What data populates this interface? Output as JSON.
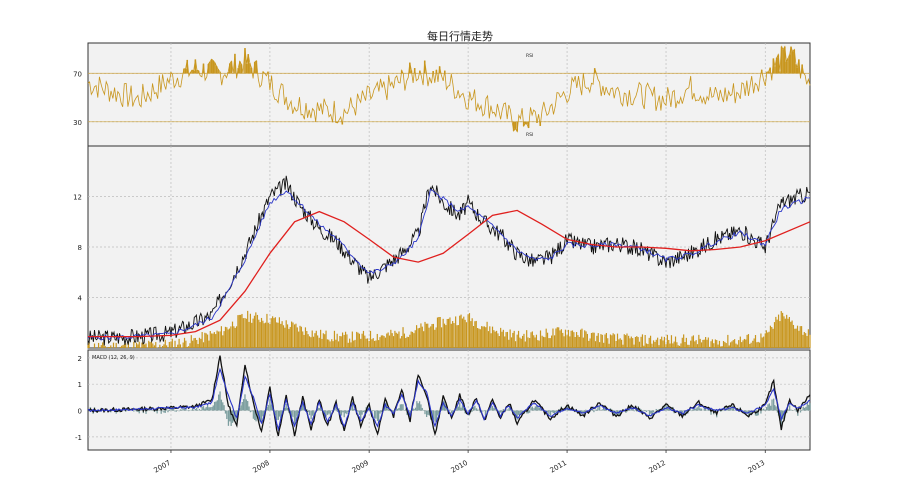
{
  "title": "每日行情走势",
  "chart_data": [
    {
      "panel": "rsi",
      "type": "line",
      "yticks": [
        30,
        70
      ],
      "ylim": [
        10,
        95
      ],
      "levels": [
        30,
        70
      ],
      "legend_top": "RSI",
      "legend_bottom": "RSI",
      "grid": true,
      "color": "#c8961e",
      "fill_above": 70,
      "fill_below": 30,
      "series": [
        {
          "x": [
            "2006-03-01",
            "2006-06-01",
            "2006-09-01",
            "2007-01-01",
            "2007-04-01",
            "2007-07-01",
            "2007-10-01",
            "2008-01-01",
            "2008-04-01",
            "2008-07-01",
            "2008-10-01",
            "2009-01-01",
            "2009-04-01",
            "2009-07-01",
            "2009-10-01",
            "2010-01-01",
            "2010-04-01",
            "2010-07-01",
            "2010-10-01",
            "2011-01-01",
            "2011-04-01",
            "2011-07-01",
            "2011-10-01",
            "2012-01-01",
            "2012-04-01",
            "2012-07-01",
            "2012-10-01",
            "2013-01-01",
            "2013-04-01",
            "2013-06-15"
          ],
          "values": [
            62,
            55,
            48,
            65,
            74,
            70,
            80,
            62,
            45,
            40,
            38,
            50,
            60,
            72,
            66,
            50,
            42,
            30,
            35,
            55,
            65,
            55,
            52,
            48,
            58,
            50,
            55,
            70,
            88,
            60
          ]
        }
      ]
    },
    {
      "panel": "price",
      "type": "line",
      "yticks": [
        4,
        8,
        12
      ],
      "ylim": [
        0,
        16
      ],
      "grid": true,
      "series": [
        {
          "color": "#111111",
          "x": [
            "2006-03-01",
            "2006-09-01",
            "2007-01-01",
            "2007-04-01",
            "2007-06-01",
            "2007-08-01",
            "2007-10-01",
            "2008-01-01",
            "2008-03-01",
            "2008-05-01",
            "2008-07-01",
            "2008-09-01",
            "2008-11-01",
            "2009-01-01",
            "2009-03-01",
            "2009-05-01",
            "2009-07-01",
            "2009-08-15",
            "2009-10-01",
            "2009-12-01",
            "2010-01-01",
            "2010-03-01",
            "2010-05-01",
            "2010-07-01",
            "2010-09-01",
            "2010-11-01",
            "2011-01-01",
            "2011-04-01",
            "2011-07-01",
            "2011-10-01",
            "2012-01-01",
            "2012-04-01",
            "2012-07-01",
            "2012-10-01",
            "2013-01-01",
            "2013-03-01",
            "2013-06-15"
          ],
          "values": [
            0.8,
            0.9,
            1.2,
            2.0,
            2.6,
            5.0,
            7.5,
            12.0,
            13.0,
            11.0,
            9.5,
            8.5,
            7.0,
            5.5,
            6.5,
            7.5,
            9.0,
            13.0,
            11.5,
            10.5,
            11.5,
            10.0,
            9.0,
            7.5,
            6.8,
            7.2,
            8.5,
            8.0,
            8.3,
            7.8,
            6.8,
            7.5,
            8.6,
            9.3,
            8.0,
            11.5,
            12.3
          ]
        },
        {
          "color": "#2a35c8",
          "x": [
            "2006-03-01",
            "2006-09-01",
            "2007-01-01",
            "2007-04-01",
            "2007-06-01",
            "2007-08-01",
            "2007-10-01",
            "2008-01-01",
            "2008-03-01",
            "2008-05-01",
            "2008-07-01",
            "2008-09-01",
            "2008-11-01",
            "2009-01-01",
            "2009-03-01",
            "2009-05-01",
            "2009-07-01",
            "2009-08-15",
            "2009-10-01",
            "2009-12-01",
            "2010-01-01",
            "2010-03-01",
            "2010-05-01",
            "2010-07-01",
            "2010-09-01",
            "2010-11-01",
            "2011-01-01",
            "2011-04-01",
            "2011-07-01",
            "2011-10-01",
            "2012-01-01",
            "2012-04-01",
            "2012-07-01",
            "2012-10-01",
            "2013-01-01",
            "2013-03-01",
            "2013-06-15"
          ],
          "values": [
            0.8,
            0.9,
            1.1,
            1.8,
            2.4,
            4.5,
            7.0,
            11.5,
            12.5,
            11.2,
            9.8,
            8.7,
            7.3,
            5.9,
            6.3,
            7.2,
            8.6,
            12.5,
            11.8,
            10.8,
            11.2,
            10.2,
            9.1,
            7.7,
            7.0,
            7.1,
            8.2,
            8.1,
            8.2,
            7.9,
            7.0,
            7.4,
            8.4,
            9.1,
            8.2,
            11.0,
            11.9
          ]
        },
        {
          "color": "#e0201e",
          "x": [
            "2006-03-01",
            "2006-09-01",
            "2007-01-01",
            "2007-04-01",
            "2007-07-01",
            "2007-10-01",
            "2008-01-01",
            "2008-04-01",
            "2008-07-01",
            "2008-10-01",
            "2009-01-01",
            "2009-04-01",
            "2009-07-01",
            "2009-10-01",
            "2010-01-01",
            "2010-04-01",
            "2010-07-01",
            "2010-10-01",
            "2011-01-01",
            "2011-04-01",
            "2011-07-01",
            "2011-10-01",
            "2012-01-01",
            "2012-04-01",
            "2012-07-01",
            "2012-10-01",
            "2013-01-01",
            "2013-06-15"
          ],
          "values": [
            0.9,
            0.9,
            1.0,
            1.3,
            2.2,
            4.5,
            7.5,
            10.0,
            10.8,
            10.0,
            8.6,
            7.2,
            6.8,
            7.5,
            9.0,
            10.5,
            10.9,
            9.8,
            8.6,
            8.2,
            8.0,
            8.0,
            7.9,
            7.7,
            7.8,
            8.0,
            8.5,
            10.0
          ]
        }
      ],
      "volume_color": "#c8961e",
      "volume": {
        "x": [
          "2006-03-01",
          "2006-09-01",
          "2007-01-01",
          "2007-04-01",
          "2007-07-01",
          "2007-10-01",
          "2008-01-01",
          "2008-04-01",
          "2008-07-01",
          "2008-10-01",
          "2009-01-01",
          "2009-04-01",
          "2009-07-01",
          "2009-10-01",
          "2010-01-01",
          "2010-04-01",
          "2010-07-01",
          "2010-10-01",
          "2011-01-01",
          "2011-04-01",
          "2011-07-01",
          "2011-10-01",
          "2012-01-01",
          "2012-04-01",
          "2012-07-01",
          "2012-10-01",
          "2013-01-01",
          "2013-03-01",
          "2013-06-15"
        ],
        "values": [
          0.1,
          0.15,
          0.3,
          0.6,
          1.2,
          2.4,
          2.2,
          1.6,
          1.0,
          0.8,
          0.9,
          1.0,
          1.4,
          2.0,
          2.3,
          1.4,
          0.9,
          1.0,
          1.3,
          0.9,
          0.7,
          0.6,
          0.6,
          0.6,
          0.5,
          0.6,
          0.8,
          2.5,
          1.0
        ]
      }
    },
    {
      "panel": "macd",
      "type": "line",
      "legend": "MACD (12, 26, 9)",
      "yticks": [
        -1,
        0,
        1,
        2
      ],
      "ylim": [
        -1.5,
        2.3
      ],
      "grid": true,
      "series": [
        {
          "color": "#111111",
          "x": [
            "2006-03-01",
            "2006-09-01",
            "2007-01-01",
            "2007-04-01",
            "2007-06-01",
            "2007-07-01",
            "2007-08-01",
            "2007-09-01",
            "2007-10-01",
            "2007-11-01",
            "2007-12-01",
            "2008-01-01",
            "2008-02-01",
            "2008-03-01",
            "2008-04-01",
            "2008-05-01",
            "2008-06-01",
            "2008-07-01",
            "2008-08-01",
            "2008-09-01",
            "2008-10-01",
            "2008-11-01",
            "2008-12-01",
            "2009-01-01",
            "2009-02-01",
            "2009-03-01",
            "2009-04-01",
            "2009-05-01",
            "2009-06-01",
            "2009-07-01",
            "2009-08-01",
            "2009-09-01",
            "2009-10-01",
            "2009-11-01",
            "2009-12-01",
            "2010-01-01",
            "2010-02-01",
            "2010-03-01",
            "2010-04-01",
            "2010-05-01",
            "2010-06-01",
            "2010-07-01",
            "2010-09-01",
            "2010-11-01",
            "2011-01-01",
            "2011-03-01",
            "2011-05-01",
            "2011-07-01",
            "2011-09-01",
            "2011-11-01",
            "2012-01-01",
            "2012-03-01",
            "2012-05-01",
            "2012-07-01",
            "2012-09-01",
            "2012-11-01",
            "2013-01-01",
            "2013-02-01",
            "2013-03-01",
            "2013-04-01",
            "2013-05-01",
            "2013-06-15"
          ],
          "values": [
            0.0,
            0.05,
            0.1,
            0.15,
            0.4,
            2.1,
            0.2,
            -0.6,
            1.8,
            0.3,
            -0.8,
            0.9,
            -1.0,
            0.6,
            -0.9,
            0.5,
            -0.7,
            0.4,
            -0.6,
            0.3,
            -0.8,
            0.5,
            -0.6,
            0.2,
            -0.9,
            0.4,
            -0.2,
            0.8,
            -0.4,
            1.4,
            0.6,
            -0.9,
            0.5,
            -0.3,
            0.6,
            -0.2,
            0.5,
            -0.4,
            0.4,
            -0.3,
            0.3,
            -0.5,
            0.4,
            -0.3,
            0.2,
            -0.2,
            0.3,
            -0.2,
            0.2,
            -0.3,
            0.2,
            -0.2,
            0.3,
            -0.1,
            0.2,
            -0.2,
            0.2,
            1.1,
            -0.7,
            0.4,
            0.0,
            0.6
          ]
        },
        {
          "color": "#2a35c8",
          "x": [
            "2006-03-01",
            "2006-09-01",
            "2007-01-01",
            "2007-04-01",
            "2007-06-01",
            "2007-07-01",
            "2007-08-01",
            "2007-09-01",
            "2007-10-01",
            "2007-11-01",
            "2007-12-01",
            "2008-01-01",
            "2008-02-01",
            "2008-03-01",
            "2008-04-01",
            "2008-05-01",
            "2008-06-01",
            "2008-07-01",
            "2008-08-01",
            "2008-09-01",
            "2008-10-01",
            "2008-11-01",
            "2008-12-01",
            "2009-01-01",
            "2009-02-01",
            "2009-03-01",
            "2009-04-01",
            "2009-05-01",
            "2009-06-01",
            "2009-07-01",
            "2009-08-01",
            "2009-09-01",
            "2009-10-01",
            "2009-11-01",
            "2009-12-01",
            "2010-01-01",
            "2010-02-01",
            "2010-03-01",
            "2010-04-01",
            "2010-05-01",
            "2010-06-01",
            "2010-07-01",
            "2010-09-01",
            "2010-11-01",
            "2011-01-01",
            "2011-03-01",
            "2011-05-01",
            "2011-07-01",
            "2011-09-01",
            "2011-11-01",
            "2012-01-01",
            "2012-03-01",
            "2012-05-01",
            "2012-07-01",
            "2012-09-01",
            "2012-11-01",
            "2013-01-01",
            "2013-02-01",
            "2013-03-01",
            "2013-04-01",
            "2013-05-01",
            "2013-06-15"
          ],
          "values": [
            0.0,
            0.05,
            0.1,
            0.12,
            0.3,
            1.6,
            0.6,
            -0.3,
            1.3,
            0.5,
            -0.5,
            0.6,
            -0.7,
            0.4,
            -0.6,
            0.3,
            -0.5,
            0.3,
            -0.4,
            0.2,
            -0.6,
            0.3,
            -0.4,
            0.1,
            -0.6,
            0.2,
            -0.1,
            0.6,
            -0.2,
            1.1,
            0.7,
            -0.6,
            0.3,
            -0.2,
            0.4,
            -0.1,
            0.4,
            -0.3,
            0.3,
            -0.2,
            0.2,
            -0.3,
            0.3,
            -0.2,
            0.1,
            -0.1,
            0.2,
            -0.1,
            0.1,
            -0.2,
            0.1,
            -0.1,
            0.2,
            0.0,
            0.1,
            -0.1,
            0.2,
            0.8,
            -0.3,
            0.3,
            0.1,
            0.4
          ]
        }
      ],
      "histogram_color": "#5f8a8b"
    }
  ],
  "x_axis": {
    "range": [
      "2006-03-01",
      "2013-06-15"
    ],
    "ticks": [
      "2007",
      "2008",
      "2009",
      "2010",
      "2011",
      "2012",
      "2013"
    ]
  }
}
